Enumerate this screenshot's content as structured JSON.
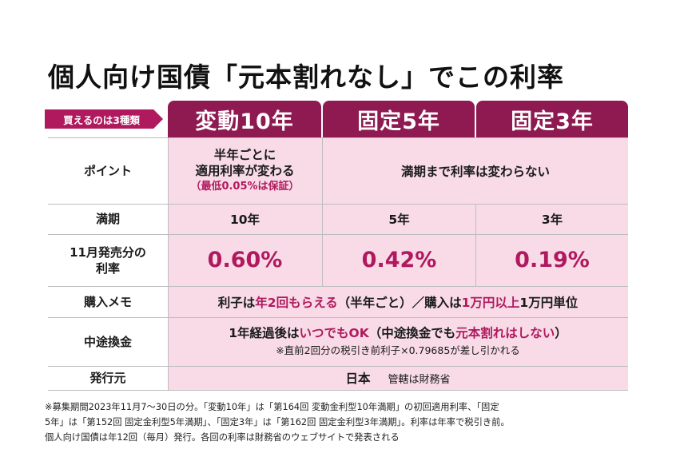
{
  "title": "個人向け国債「元本割れなし」でこの利率",
  "badge": "買えるのは3種類",
  "columns": [
    "変動10年",
    "固定5年",
    "固定3年"
  ],
  "rows": {
    "point": {
      "label": "ポイント",
      "hendo_line1": "半年ごとに",
      "hendo_line2": "適用利率が変わる",
      "hendo_line3": "（最低0.05%は保証）",
      "fixed": "満期まで利率は変わらない"
    },
    "maturity": {
      "label": "満期",
      "values": [
        "10年",
        "5年",
        "3年"
      ]
    },
    "rate": {
      "label_line1": "11月発売分の",
      "label_line2": "利率",
      "values": [
        "0.60%",
        "0.42%",
        "0.19%"
      ]
    },
    "memo": {
      "label": "購入メモ",
      "p1": "利子は",
      "p2": "年2回もらえる",
      "p3": "（半年ごと）／購入は",
      "p4": "1万円以上",
      "p5": "1万円単位"
    },
    "redeem": {
      "label": "中途換金",
      "p1": "1年経過後は",
      "p2": "いつでもOK",
      "p3": "（中途換金でも",
      "p4": "元本割れはしない",
      "p5": "）",
      "sub": "※直前2回分の税引き前利子×0.79685が差し引かれる"
    },
    "issuer": {
      "label": "発行元",
      "value1": "日本",
      "value2": "管轄は財務省"
    }
  },
  "footnote": [
    "※募集期間2023年11月7〜30日の分。「変動10年」は「第164回 変動金利型10年満期」の初回適用利率、「固定",
    "5年」は「第152回 固定金利型5年満期」、「固定3年」は「第162回 固定金利型3年満期」。利率は年率で税引き前。",
    "個人向け国債は年12回（毎月）発行。各回の利率は財務省のウェブサイトで発表される"
  ],
  "colors": {
    "accent": "#8e1a51",
    "pink_text": "#b0195e",
    "cell_bg": "#f8dbe7"
  }
}
